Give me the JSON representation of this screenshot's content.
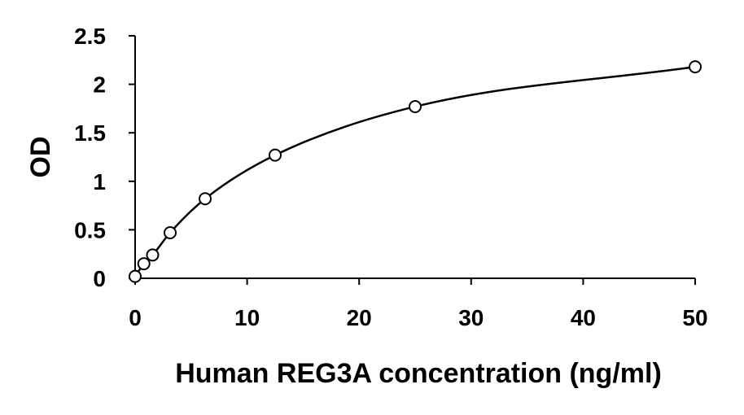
{
  "chart_data": {
    "type": "scatter",
    "title": "",
    "xlabel": "Human REG3A concentration (ng/ml)",
    "ylabel": "OD",
    "xlim": [
      0,
      50
    ],
    "ylim": [
      0,
      2.5
    ],
    "xticks": [
      0,
      10,
      20,
      30,
      40,
      50
    ],
    "xtick_labels": [
      "0",
      "10",
      "20",
      "30",
      "40",
      "50"
    ],
    "yticks": [
      0,
      0.5,
      1,
      1.5,
      2,
      2.5
    ],
    "ytick_labels": [
      "0",
      "0.5",
      "1",
      "1.5",
      "2",
      "2.5"
    ],
    "grid": false,
    "legend": "none",
    "fit_line": "smooth",
    "series": [
      {
        "points": [
          {
            "x": 0,
            "y": 0.02
          },
          {
            "x": 0.78,
            "y": 0.15
          },
          {
            "x": 1.56,
            "y": 0.24
          },
          {
            "x": 3.125,
            "y": 0.47
          },
          {
            "x": 6.25,
            "y": 0.82
          },
          {
            "x": 12.5,
            "y": 1.27
          },
          {
            "x": 25,
            "y": 1.77
          },
          {
            "x": 50,
            "y": 2.18
          }
        ]
      }
    ],
    "colors": {
      "axis": "#000000",
      "line": "#000000",
      "marker_fill": "#ffffff",
      "marker_stroke": "#000000"
    }
  }
}
